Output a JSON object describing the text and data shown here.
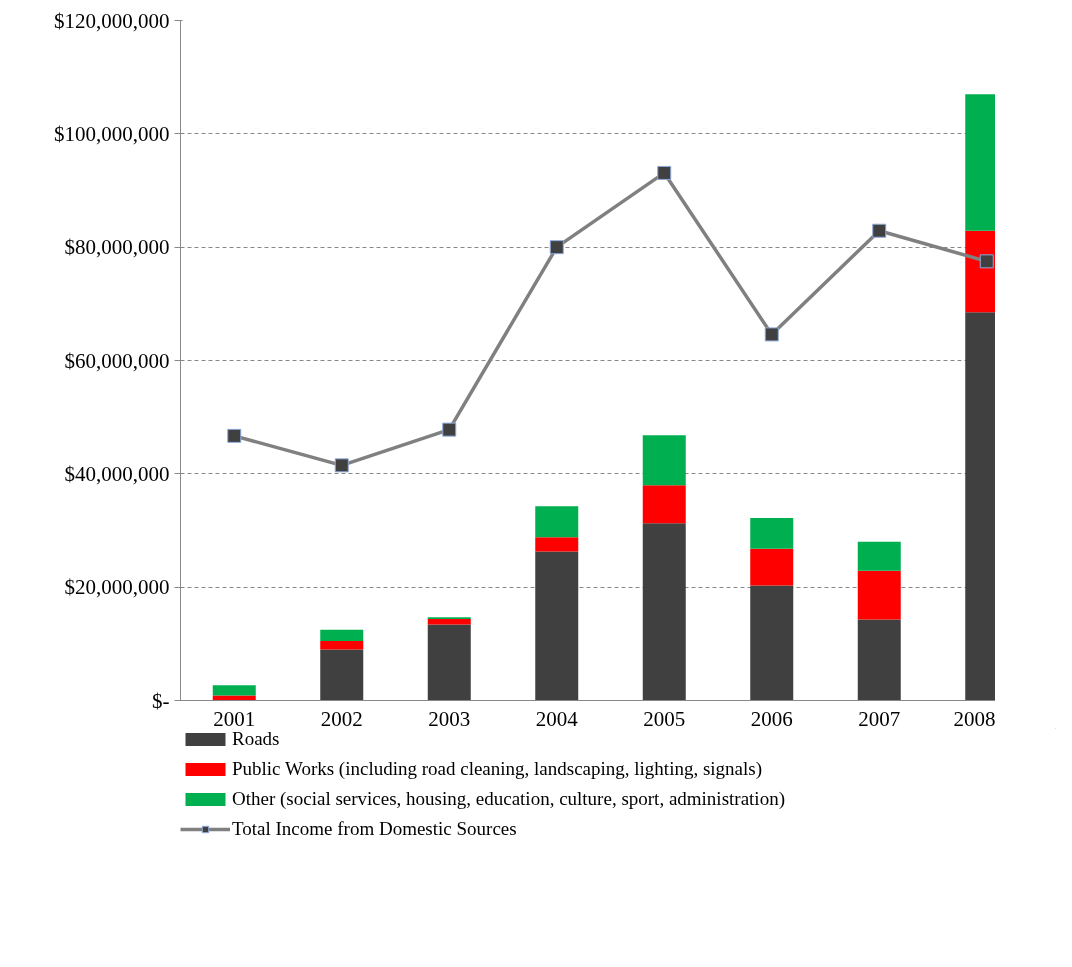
{
  "chart_data": {
    "type": "bar",
    "stacked": true,
    "categories": [
      "2001",
      "2002",
      "2003",
      "2004",
      "2005",
      "2006",
      "2007",
      "2008"
    ],
    "series": [
      {
        "name": "Roads",
        "color": "#404040",
        "values": [
          0,
          9000000,
          13400000,
          26300000,
          31300000,
          20300000,
          14300000,
          68500000
        ]
      },
      {
        "name": "Public Works (including road cleaning, landscaping, lighting, signals)",
        "color": "#ff0000",
        "values": [
          900000,
          1500000,
          1000000,
          2500000,
          6700000,
          6500000,
          8600000,
          14400000
        ]
      },
      {
        "name": "Other (social services, housing, education, culture, sport, administration)",
        "color": "#00b050",
        "values": [
          1800000,
          2000000,
          300000,
          5500000,
          8800000,
          5400000,
          5100000,
          24100000
        ]
      },
      {
        "name": "Total Income from Domestic Sources",
        "type": "line",
        "color": "#808080",
        "marker": "square",
        "values": [
          46700000,
          41500000,
          47800000,
          80000000,
          93100000,
          64600000,
          82900000,
          77500000
        ]
      }
    ],
    "ylim": [
      0,
      120000000
    ],
    "yticks": [
      {
        "value": 0,
        "label": "$-"
      },
      {
        "value": 20000000,
        "label": "$20,000,000"
      },
      {
        "value": 40000000,
        "label": "$40,000,000"
      },
      {
        "value": 60000000,
        "label": "$60,000,000"
      },
      {
        "value": 80000000,
        "label": "$80,000,000"
      },
      {
        "value": 100000000,
        "label": "$100,000,000"
      },
      {
        "value": 120000000,
        "label": "$120,000,000"
      }
    ],
    "grid": "y",
    "legend": "bottom"
  }
}
